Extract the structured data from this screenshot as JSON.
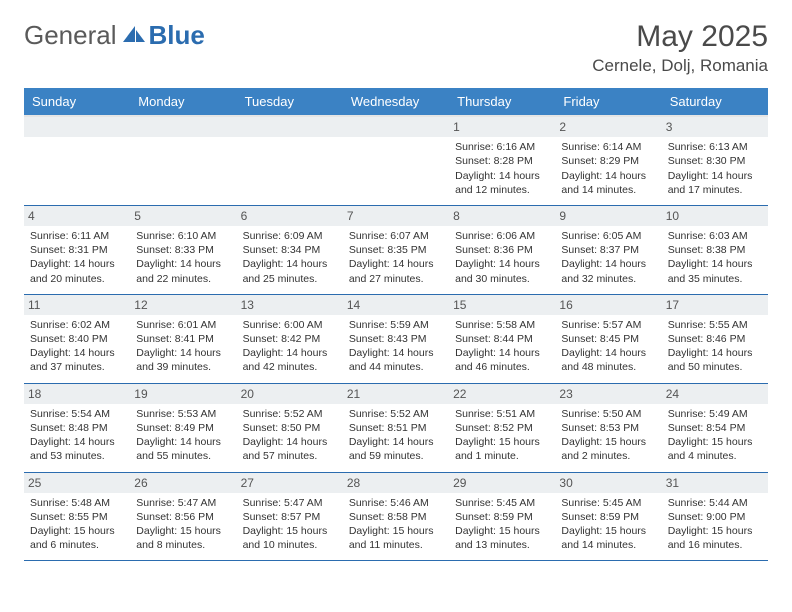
{
  "logo": {
    "general": "General",
    "blue": "Blue"
  },
  "title": "May 2025",
  "location": "Cernele, Dolj, Romania",
  "colors": {
    "header_bg": "#3b82c4",
    "header_text": "#ffffff",
    "daynum_bg": "#eceff1",
    "rule": "#2b6caf",
    "logo_gray": "#5a5a5a",
    "logo_blue": "#2b6caf"
  },
  "weekdays": [
    "Sunday",
    "Monday",
    "Tuesday",
    "Wednesday",
    "Thursday",
    "Friday",
    "Saturday"
  ],
  "weeks": [
    [
      null,
      null,
      null,
      null,
      {
        "n": "1",
        "sr": "Sunrise: 6:16 AM",
        "ss": "Sunset: 8:28 PM",
        "dl1": "Daylight: 14 hours",
        "dl2": "and 12 minutes."
      },
      {
        "n": "2",
        "sr": "Sunrise: 6:14 AM",
        "ss": "Sunset: 8:29 PM",
        "dl1": "Daylight: 14 hours",
        "dl2": "and 14 minutes."
      },
      {
        "n": "3",
        "sr": "Sunrise: 6:13 AM",
        "ss": "Sunset: 8:30 PM",
        "dl1": "Daylight: 14 hours",
        "dl2": "and 17 minutes."
      }
    ],
    [
      {
        "n": "4",
        "sr": "Sunrise: 6:11 AM",
        "ss": "Sunset: 8:31 PM",
        "dl1": "Daylight: 14 hours",
        "dl2": "and 20 minutes."
      },
      {
        "n": "5",
        "sr": "Sunrise: 6:10 AM",
        "ss": "Sunset: 8:33 PM",
        "dl1": "Daylight: 14 hours",
        "dl2": "and 22 minutes."
      },
      {
        "n": "6",
        "sr": "Sunrise: 6:09 AM",
        "ss": "Sunset: 8:34 PM",
        "dl1": "Daylight: 14 hours",
        "dl2": "and 25 minutes."
      },
      {
        "n": "7",
        "sr": "Sunrise: 6:07 AM",
        "ss": "Sunset: 8:35 PM",
        "dl1": "Daylight: 14 hours",
        "dl2": "and 27 minutes."
      },
      {
        "n": "8",
        "sr": "Sunrise: 6:06 AM",
        "ss": "Sunset: 8:36 PM",
        "dl1": "Daylight: 14 hours",
        "dl2": "and 30 minutes."
      },
      {
        "n": "9",
        "sr": "Sunrise: 6:05 AM",
        "ss": "Sunset: 8:37 PM",
        "dl1": "Daylight: 14 hours",
        "dl2": "and 32 minutes."
      },
      {
        "n": "10",
        "sr": "Sunrise: 6:03 AM",
        "ss": "Sunset: 8:38 PM",
        "dl1": "Daylight: 14 hours",
        "dl2": "and 35 minutes."
      }
    ],
    [
      {
        "n": "11",
        "sr": "Sunrise: 6:02 AM",
        "ss": "Sunset: 8:40 PM",
        "dl1": "Daylight: 14 hours",
        "dl2": "and 37 minutes."
      },
      {
        "n": "12",
        "sr": "Sunrise: 6:01 AM",
        "ss": "Sunset: 8:41 PM",
        "dl1": "Daylight: 14 hours",
        "dl2": "and 39 minutes."
      },
      {
        "n": "13",
        "sr": "Sunrise: 6:00 AM",
        "ss": "Sunset: 8:42 PM",
        "dl1": "Daylight: 14 hours",
        "dl2": "and 42 minutes."
      },
      {
        "n": "14",
        "sr": "Sunrise: 5:59 AM",
        "ss": "Sunset: 8:43 PM",
        "dl1": "Daylight: 14 hours",
        "dl2": "and 44 minutes."
      },
      {
        "n": "15",
        "sr": "Sunrise: 5:58 AM",
        "ss": "Sunset: 8:44 PM",
        "dl1": "Daylight: 14 hours",
        "dl2": "and 46 minutes."
      },
      {
        "n": "16",
        "sr": "Sunrise: 5:57 AM",
        "ss": "Sunset: 8:45 PM",
        "dl1": "Daylight: 14 hours",
        "dl2": "and 48 minutes."
      },
      {
        "n": "17",
        "sr": "Sunrise: 5:55 AM",
        "ss": "Sunset: 8:46 PM",
        "dl1": "Daylight: 14 hours",
        "dl2": "and 50 minutes."
      }
    ],
    [
      {
        "n": "18",
        "sr": "Sunrise: 5:54 AM",
        "ss": "Sunset: 8:48 PM",
        "dl1": "Daylight: 14 hours",
        "dl2": "and 53 minutes."
      },
      {
        "n": "19",
        "sr": "Sunrise: 5:53 AM",
        "ss": "Sunset: 8:49 PM",
        "dl1": "Daylight: 14 hours",
        "dl2": "and 55 minutes."
      },
      {
        "n": "20",
        "sr": "Sunrise: 5:52 AM",
        "ss": "Sunset: 8:50 PM",
        "dl1": "Daylight: 14 hours",
        "dl2": "and 57 minutes."
      },
      {
        "n": "21",
        "sr": "Sunrise: 5:52 AM",
        "ss": "Sunset: 8:51 PM",
        "dl1": "Daylight: 14 hours",
        "dl2": "and 59 minutes."
      },
      {
        "n": "22",
        "sr": "Sunrise: 5:51 AM",
        "ss": "Sunset: 8:52 PM",
        "dl1": "Daylight: 15 hours",
        "dl2": "and 1 minute."
      },
      {
        "n": "23",
        "sr": "Sunrise: 5:50 AM",
        "ss": "Sunset: 8:53 PM",
        "dl1": "Daylight: 15 hours",
        "dl2": "and 2 minutes."
      },
      {
        "n": "24",
        "sr": "Sunrise: 5:49 AM",
        "ss": "Sunset: 8:54 PM",
        "dl1": "Daylight: 15 hours",
        "dl2": "and 4 minutes."
      }
    ],
    [
      {
        "n": "25",
        "sr": "Sunrise: 5:48 AM",
        "ss": "Sunset: 8:55 PM",
        "dl1": "Daylight: 15 hours",
        "dl2": "and 6 minutes."
      },
      {
        "n": "26",
        "sr": "Sunrise: 5:47 AM",
        "ss": "Sunset: 8:56 PM",
        "dl1": "Daylight: 15 hours",
        "dl2": "and 8 minutes."
      },
      {
        "n": "27",
        "sr": "Sunrise: 5:47 AM",
        "ss": "Sunset: 8:57 PM",
        "dl1": "Daylight: 15 hours",
        "dl2": "and 10 minutes."
      },
      {
        "n": "28",
        "sr": "Sunrise: 5:46 AM",
        "ss": "Sunset: 8:58 PM",
        "dl1": "Daylight: 15 hours",
        "dl2": "and 11 minutes."
      },
      {
        "n": "29",
        "sr": "Sunrise: 5:45 AM",
        "ss": "Sunset: 8:59 PM",
        "dl1": "Daylight: 15 hours",
        "dl2": "and 13 minutes."
      },
      {
        "n": "30",
        "sr": "Sunrise: 5:45 AM",
        "ss": "Sunset: 8:59 PM",
        "dl1": "Daylight: 15 hours",
        "dl2": "and 14 minutes."
      },
      {
        "n": "31",
        "sr": "Sunrise: 5:44 AM",
        "ss": "Sunset: 9:00 PM",
        "dl1": "Daylight: 15 hours",
        "dl2": "and 16 minutes."
      }
    ]
  ]
}
